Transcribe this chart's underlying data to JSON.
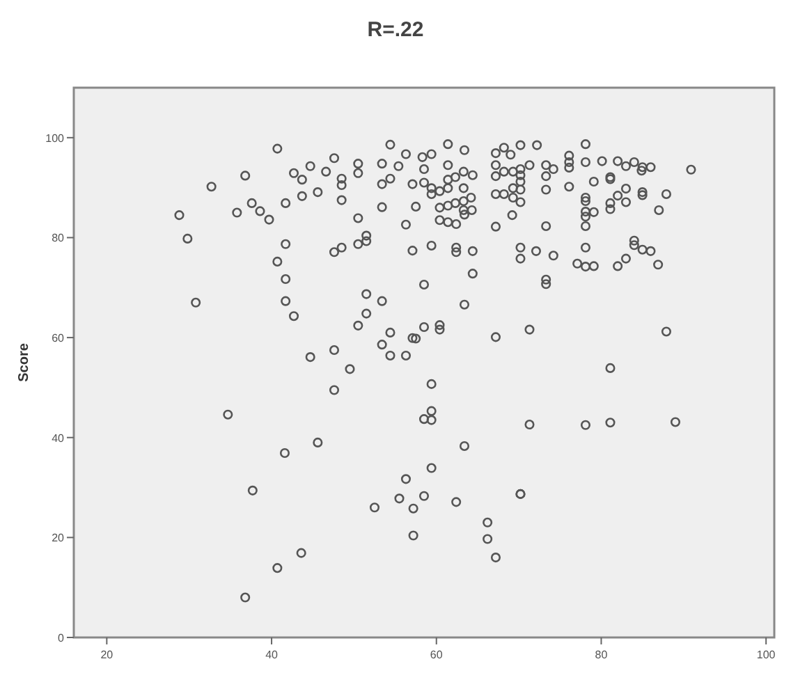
{
  "chart_data": {
    "type": "scatter",
    "title": "R=.22",
    "ylabel": "Score",
    "marker": "circle",
    "grid": false,
    "xlim": [
      16,
      101
    ],
    "xticks": [
      20,
      40,
      60,
      80,
      100
    ],
    "ylim": [
      0,
      110
    ],
    "yticks": [
      0,
      20,
      40,
      60,
      80,
      100
    ],
    "series": [
      {
        "color": "#555555",
        "x": [
          28.8,
          29.8,
          30.8,
          32.7,
          35.8,
          36.8,
          37.6,
          38.6,
          39.7,
          40.7,
          40.7,
          41.7,
          41.7,
          41.7,
          41.7,
          42.7,
          42.7,
          43.7,
          43.7,
          44.7,
          44.7,
          45.6,
          46.6,
          47.6,
          47.6,
          47.6,
          48.5,
          48.5,
          48.5,
          48.5,
          49.5,
          50.5,
          50.5,
          50.5,
          50.5,
          50.5,
          51.5,
          51.5,
          51.5,
          51.5,
          53.4,
          53.4,
          53.4,
          53.4,
          53.4,
          54.4,
          54.4,
          54.4,
          54.4,
          55.4,
          56.3,
          56.3,
          56.3,
          57.1,
          57.1,
          57.1,
          61.4,
          58.3,
          59.4,
          63.4,
          61.4,
          58.5,
          63.3,
          64.4,
          62.3,
          61.4,
          58.5,
          59.4,
          60.4,
          59.4,
          61.4,
          63.3,
          64.2,
          63.3,
          62.3,
          61.4,
          60.4,
          63.3,
          64.3,
          57.5,
          60.4,
          61.4,
          62.4,
          63.4,
          59.4,
          62.4,
          62.4,
          64.4,
          64.4,
          58.5,
          63.4,
          58.5,
          57.5,
          60.4,
          60.4,
          67.2,
          68.2,
          69.0,
          70.2,
          72.2,
          67.2,
          68.2,
          69.3,
          70.2,
          70.2,
          71.3,
          73.3,
          74.2,
          73.3,
          67.2,
          70.2,
          69.3,
          68.2,
          67.2,
          70.2,
          73.3,
          69.3,
          70.2,
          69.2,
          67.2,
          73.3,
          70.2,
          70.2,
          72.1,
          74.2,
          73.3,
          73.3,
          67.2,
          71.3,
          76.1,
          76.1,
          76.1,
          78.1,
          78.1,
          80.1,
          82.0,
          84.0,
          85.0,
          86.0,
          83.0,
          84.9,
          81.1,
          81.1,
          79.1,
          76.1,
          83.0,
          85.0,
          85.0,
          87.9,
          78.1,
          78.1,
          81.1,
          83.0,
          82.0,
          78.1,
          79.1,
          81.1,
          87.0,
          78.1,
          78.1,
          78.1,
          77.1,
          78.1,
          79.1,
          82.0,
          83.0,
          84.0,
          84.0,
          85.0,
          86.0,
          86.9,
          90.9,
          87.9,
          81.1,
          47.6,
          34.7,
          45.6,
          41.6,
          37.7,
          56.3,
          55.5,
          52.5,
          57.2,
          57.2,
          43.6,
          40.7,
          36.8,
          59.4,
          59.4,
          58.5,
          59.4,
          71.3,
          78.1,
          81.1,
          89.0,
          63.4,
          59.4,
          58.5,
          62.4,
          70.2,
          70.2,
          66.2,
          66.2,
          67.2
        ],
        "values": [
          84.5,
          79.8,
          67,
          90.2,
          85,
          92.4,
          86.9,
          85.3,
          83.6,
          97.8,
          75.2,
          86.9,
          78.7,
          71.7,
          67.3,
          64.3,
          92.9,
          91.6,
          88.3,
          94.3,
          56.1,
          89.1,
          93.2,
          95.9,
          77.1,
          57.5,
          91.8,
          90.5,
          87.5,
          78,
          53.7,
          94.8,
          92.9,
          83.9,
          78.7,
          62.4,
          80.4,
          79.3,
          68.7,
          64.8,
          94.8,
          90.7,
          86.1,
          67.3,
          58.6,
          98.6,
          91.8,
          61,
          56.4,
          94.3,
          96.7,
          82.6,
          56.4,
          90.7,
          77.4,
          59.9,
          98.7,
          96.1,
          96.7,
          97.5,
          94.5,
          93.7,
          93.2,
          92.5,
          92.1,
          91.6,
          91,
          89.9,
          89.3,
          88.7,
          89.9,
          89.9,
          88,
          87.3,
          86.9,
          86.4,
          86,
          85.5,
          85.5,
          86.2,
          83.5,
          83.1,
          82.7,
          84.6,
          78.4,
          78,
          77.1,
          77.3,
          72.8,
          70.6,
          66.6,
          62.1,
          59.8,
          62.5,
          61.6,
          96.9,
          98,
          96.6,
          98.5,
          98.5,
          94.5,
          93.2,
          93.2,
          93.7,
          92.5,
          94.5,
          94.5,
          93.7,
          92.3,
          92.3,
          91.2,
          89.9,
          88.7,
          88.7,
          89.6,
          89.6,
          88,
          87.1,
          84.5,
          82.2,
          82.3,
          78,
          75.8,
          77.3,
          76.4,
          71.6,
          70.7,
          60.1,
          61.6,
          96.4,
          95.1,
          94,
          98.7,
          95.1,
          95.3,
          95.3,
          95.1,
          94.1,
          94.1,
          94.3,
          93.4,
          92.1,
          91.7,
          91.2,
          90.2,
          89.8,
          89.1,
          88.5,
          88.7,
          88,
          87.3,
          86.9,
          87.1,
          88.4,
          85.2,
          85.1,
          85.7,
          85.5,
          84.2,
          82.3,
          78,
          74.8,
          74.2,
          74.3,
          74.3,
          75.8,
          79.4,
          78.5,
          77.6,
          77.3,
          74.6,
          93.6,
          61.2,
          53.9,
          49.5,
          44.6,
          39,
          36.9,
          29.4,
          31.7,
          27.8,
          26,
          25.8,
          20.4,
          16.9,
          13.9,
          8,
          50.7,
          45.3,
          43.7,
          43.5,
          42.6,
          42.5,
          43,
          43.1,
          38.3,
          33.9,
          28.3,
          27.1,
          28.7,
          28.7,
          23,
          19.7,
          16
        ]
      }
    ]
  }
}
